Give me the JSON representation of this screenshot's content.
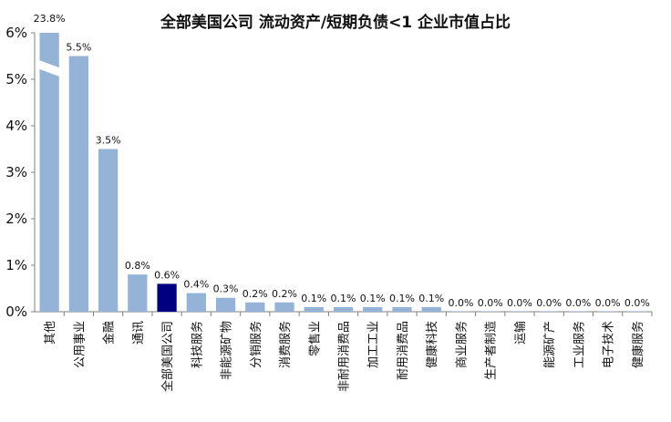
{
  "chart_data": {
    "type": "bar",
    "title": "全部美国公司 流动资产/短期负债<1 企业市值占比",
    "xlabel": "",
    "ylabel": "",
    "ylim": [
      0,
      6
    ],
    "ytick_labels": [
      "0%",
      "1%",
      "2%",
      "3%",
      "4%",
      "5%",
      "6%"
    ],
    "grid": false,
    "legend": "none",
    "categories": [
      "其他",
      "公用事业",
      "金融",
      "通讯",
      "全部美国公司",
      "科技服务",
      "非能源矿物",
      "分销服务",
      "消费服务",
      "零售业",
      "非耐用消费品",
      "加工工业",
      "耐用消费品",
      "健康科技",
      "商业服务",
      "生产者制造",
      "运输",
      "能源矿产",
      "工业服务",
      "电子技术",
      "健康服务"
    ],
    "values": [
      23.8,
      5.5,
      3.5,
      0.8,
      0.6,
      0.4,
      0.3,
      0.2,
      0.2,
      0.1,
      0.1,
      0.1,
      0.1,
      0.1,
      0.0,
      0.0,
      0.0,
      0.0,
      0.0,
      0.0,
      0.0
    ],
    "data_labels": [
      "23.8%",
      "5.5%",
      "3.5%",
      "0.8%",
      "0.6%",
      "0.4%",
      "0.3%",
      "0.2%",
      "0.2%",
      "0.1%",
      "0.1%",
      "0.1%",
      "0.1%",
      "0.1%",
      "0.0%",
      "0.0%",
      "0.0%",
      "0.0%",
      "0.0%",
      "0.0%",
      "0.0%"
    ],
    "axis_break_on": "其他",
    "highlight_category": "全部美国公司",
    "colors": {
      "bar": "#95b3d7",
      "highlight": "#000080",
      "axis": "#808080"
    }
  }
}
